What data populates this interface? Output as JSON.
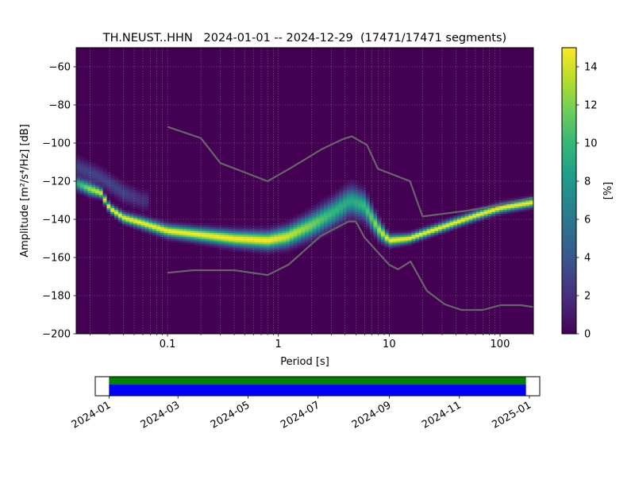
{
  "chart_data": [
    {
      "type": "heatmap",
      "title": "TH.NEUST..HHN   2024-01-01 -- 2024-12-29  (17471/17471 segments)",
      "xlabel": "Period [s]",
      "ylabel": "Amplitude [m²/s⁴/Hz] [dB]",
      "x_scale": "log",
      "xlim": [
        0.015,
        200
      ],
      "ylim": [
        -200,
        -50
      ],
      "x_ticks": [
        {
          "value": 0.1,
          "label": "0.1"
        },
        {
          "value": 1,
          "label": "1"
        },
        {
          "value": 10,
          "label": "10"
        },
        {
          "value": 100,
          "label": "100"
        }
      ],
      "y_ticks": [
        {
          "value": -60,
          "label": "−60"
        },
        {
          "value": -80,
          "label": "−80"
        },
        {
          "value": -100,
          "label": "−100"
        },
        {
          "value": -120,
          "label": "−120"
        },
        {
          "value": -140,
          "label": "−140"
        },
        {
          "value": -160,
          "label": "−160"
        },
        {
          "value": -180,
          "label": "−180"
        },
        {
          "value": -200,
          "label": "−200"
        }
      ],
      "grid": true,
      "colormap": "viridis",
      "background_color": "#440154",
      "colorbar": {
        "label": "[%]",
        "range": [
          0,
          15
        ],
        "ticks": [
          {
            "value": 0,
            "label": "0"
          },
          {
            "value": 2,
            "label": "2"
          },
          {
            "value": 4,
            "label": "4"
          },
          {
            "value": 6,
            "label": "6"
          },
          {
            "value": 8,
            "label": "8"
          },
          {
            "value": 10,
            "label": "10"
          },
          {
            "value": 12,
            "label": "12"
          },
          {
            "value": 14,
            "label": "14"
          }
        ]
      },
      "density_ridge": [
        {
          "period": 0.015,
          "db": -121,
          "spread": 2.0,
          "peak": 9
        },
        {
          "period": 0.02,
          "db": -124,
          "spread": 2.0,
          "peak": 13
        },
        {
          "period": 0.025,
          "db": -126,
          "spread": 1.6,
          "peak": 14
        },
        {
          "period": 0.03,
          "db": -134,
          "spread": 1.4,
          "peak": 15
        },
        {
          "period": 0.04,
          "db": -139,
          "spread": 1.6,
          "peak": 15
        },
        {
          "period": 0.06,
          "db": -142,
          "spread": 1.8,
          "peak": 15
        },
        {
          "period": 0.1,
          "db": -146,
          "spread": 2.0,
          "peak": 15
        },
        {
          "period": 0.2,
          "db": -148,
          "spread": 2.2,
          "peak": 15
        },
        {
          "period": 0.4,
          "db": -150,
          "spread": 2.5,
          "peak": 15
        },
        {
          "period": 0.8,
          "db": -151,
          "spread": 2.8,
          "peak": 15
        },
        {
          "period": 1.2,
          "db": -149,
          "spread": 3.2,
          "peak": 14
        },
        {
          "period": 2.0,
          "db": -143,
          "spread": 3.8,
          "peak": 12
        },
        {
          "period": 3.0,
          "db": -137,
          "spread": 4.2,
          "peak": 10
        },
        {
          "period": 4.5,
          "db": -130,
          "spread": 4.5,
          "peak": 9
        },
        {
          "period": 6.0,
          "db": -133,
          "spread": 4.2,
          "peak": 10
        },
        {
          "period": 8.0,
          "db": -145,
          "spread": 3.0,
          "peak": 13
        },
        {
          "period": 10,
          "db": -151,
          "spread": 1.8,
          "peak": 15
        },
        {
          "period": 15,
          "db": -150,
          "spread": 1.5,
          "peak": 15
        },
        {
          "period": 30,
          "db": -144,
          "spread": 1.5,
          "peak": 15
        },
        {
          "period": 60,
          "db": -138,
          "spread": 1.5,
          "peak": 15
        },
        {
          "period": 100,
          "db": -134,
          "spread": 1.5,
          "peak": 15
        },
        {
          "period": 200,
          "db": -131,
          "spread": 1.5,
          "peak": 15
        }
      ],
      "secondary_ridge": [
        {
          "period": 0.015,
          "db": -112,
          "spread": 3.0,
          "peak": 3
        },
        {
          "period": 0.025,
          "db": -118,
          "spread": 3.0,
          "peak": 3
        },
        {
          "period": 0.04,
          "db": -126,
          "spread": 3.0,
          "peak": 3
        },
        {
          "period": 0.06,
          "db": -130,
          "spread": 3.0,
          "peak": 2
        }
      ],
      "series": [
        {
          "name": "",
          "color": "#666666",
          "x": [
            0.1,
            0.2,
            0.3,
            0.8,
            1.3,
            2.5,
            3.8,
            4.6,
            6.3,
            7.9,
            15.4,
            20,
            50,
            100,
            200
          ],
          "y": [
            -91.5,
            -97.4,
            -110.5,
            -120.0,
            -113.0,
            -103.0,
            -98.0,
            -96.5,
            -101.0,
            -113.5,
            -120.0,
            -138.5,
            -135.5,
            -132.5,
            -128.5
          ]
        },
        {
          "name": "",
          "color": "#666666",
          "x": [
            0.1,
            0.17,
            0.4,
            0.8,
            1.24,
            2.4,
            4.3,
            5.0,
            6.0,
            10,
            12,
            15.6,
            21.9,
            31.6,
            45,
            70,
            101,
            154,
            200
          ],
          "y": [
            -168.0,
            -166.7,
            -166.7,
            -169.2,
            -163.7,
            -148.8,
            -141.1,
            -141.1,
            -149.6,
            -163.8,
            -166.2,
            -162.1,
            -177.5,
            -184.5,
            -187.5,
            -187.5,
            -185.0,
            -185.0,
            -186.0
          ]
        }
      ]
    },
    {
      "type": "bar",
      "title": "",
      "x_type": "date",
      "xlim": [
        "2023-12-20",
        "2025-01-10"
      ],
      "x_ticks": [
        "2024-01",
        "2024-03",
        "2024-05",
        "2024-07",
        "2024-09",
        "2024-11",
        "2025-01"
      ],
      "tick_label_rotation": 30,
      "bars": [
        {
          "start": "2024-01-01",
          "end": "2024-12-29",
          "color": "#008000",
          "band": "top"
        },
        {
          "start": "2024-01-01",
          "end": "2024-12-29",
          "color": "#0000ff",
          "band": "bottom"
        }
      ]
    }
  ]
}
